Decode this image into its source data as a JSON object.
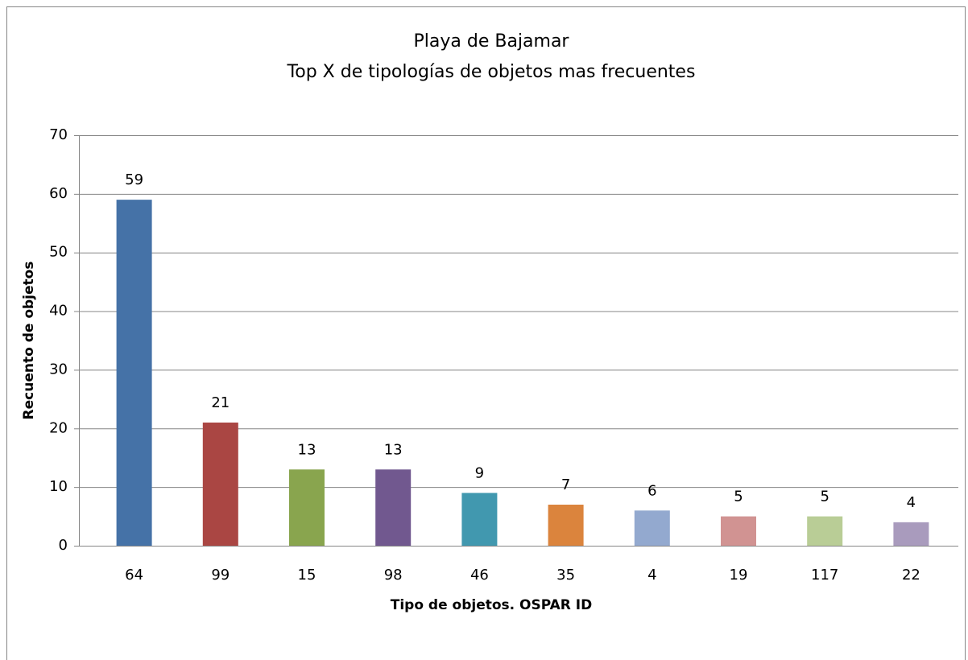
{
  "chart_data": {
    "type": "bar",
    "title": "Playa de Bajamar",
    "subtitle": "Top X de tipologías de objetos mas frecuentes",
    "x_label": "Tipo de objetos. OSPAR ID",
    "y_label": "Recuento de objetos",
    "categories": [
      "64",
      "99",
      "15",
      "98",
      "46",
      "35",
      "4",
      "19",
      "117",
      "22"
    ],
    "values": [
      59,
      21,
      13,
      13,
      9,
      7,
      6,
      5,
      5,
      4
    ],
    "colors": [
      "#4572a7",
      "#aa4643",
      "#89a54e",
      "#71588f",
      "#4198af",
      "#db843d",
      "#93a9cf",
      "#d19392",
      "#b9cd96",
      "#a99bbd"
    ],
    "ylim": [
      0,
      70
    ],
    "yticks": [
      0,
      10,
      20,
      30,
      40,
      50,
      60,
      70
    ],
    "grid": true
  }
}
